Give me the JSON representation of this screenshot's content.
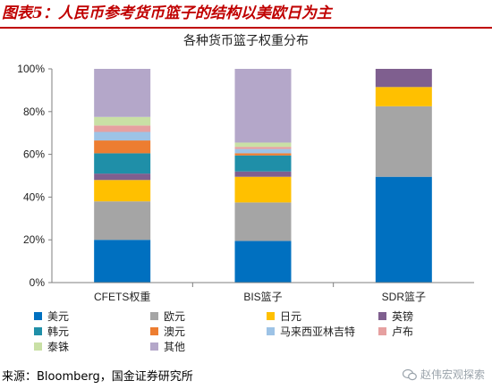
{
  "figure": {
    "title": "图表5：人民币参考货币篮子的结构以美欧日为主",
    "source": "来源：Bloomberg，国金证券研究所",
    "watermark": "赵伟宏观探索"
  },
  "chart_data": {
    "type": "bar",
    "stacked": true,
    "title": "各种货币篮子权重分布",
    "categories": [
      "CFETS权重",
      "BIS篮子",
      "SDR篮子"
    ],
    "ylim": [
      0,
      100
    ],
    "yticks": [
      "0%",
      "20%",
      "40%",
      "60%",
      "80%",
      "100%"
    ],
    "grid": false,
    "legend_position": "bottom",
    "series": [
      {
        "name": "美元",
        "color": "#0070c0",
        "values": [
          20,
          19.5,
          49.5
        ]
      },
      {
        "name": "欧元",
        "color": "#a5a5a5",
        "values": [
          18,
          18,
          33
        ]
      },
      {
        "name": "日元",
        "color": "#ffc000",
        "values": [
          10,
          12,
          9
        ]
      },
      {
        "name": "英镑",
        "color": "#7f5f8f",
        "values": [
          3,
          2.5,
          8.5
        ]
      },
      {
        "name": "韩元",
        "color": "#1f8fa8",
        "values": [
          9.5,
          7.5,
          0
        ]
      },
      {
        "name": "澳元",
        "color": "#ed7d31",
        "values": [
          6,
          1,
          0
        ]
      },
      {
        "name": "马来西亚林吉特",
        "color": "#9dc3e6",
        "values": [
          4,
          2,
          0
        ]
      },
      {
        "name": "卢布",
        "color": "#e6a0a0",
        "values": [
          3,
          1,
          0
        ]
      },
      {
        "name": "泰铢",
        "color": "#c9e0a5",
        "values": [
          4,
          2,
          0
        ]
      },
      {
        "name": "其他",
        "color": "#b4a7c9",
        "values": [
          22.5,
          34.5,
          0
        ]
      }
    ]
  }
}
